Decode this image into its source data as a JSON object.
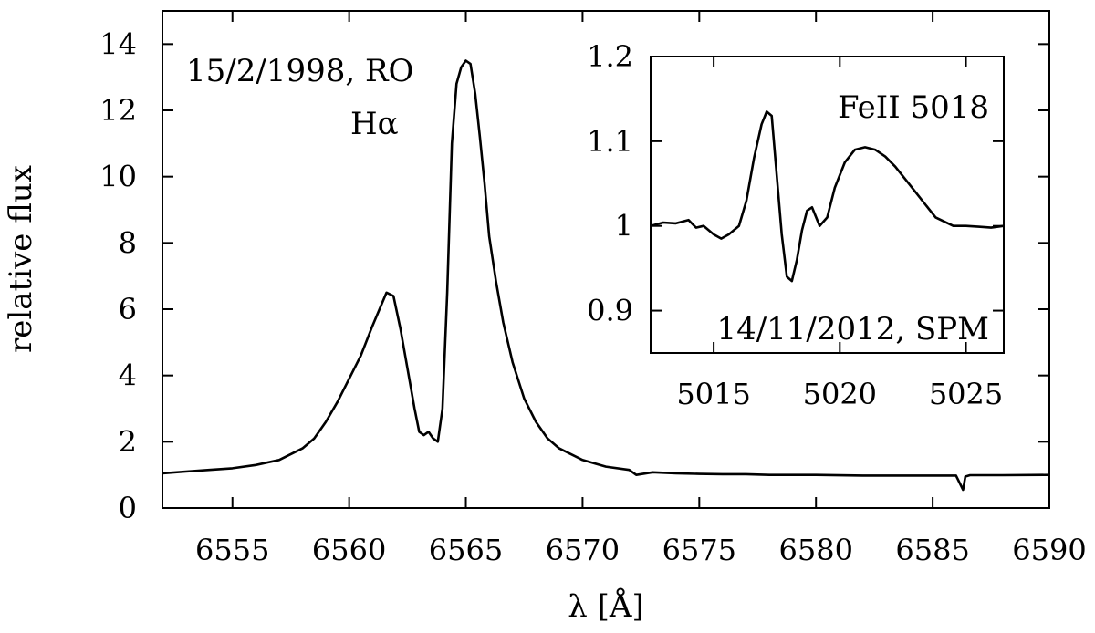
{
  "chart_data": [
    {
      "id": "main",
      "type": "line",
      "ylabel": "relative flux",
      "xlabel": "λ [Å]",
      "xlim": [
        6552,
        6590
      ],
      "ylim": [
        0,
        15
      ],
      "xticks": [
        6555,
        6560,
        6565,
        6570,
        6575,
        6580,
        6585,
        6590
      ],
      "yticks": [
        0,
        2,
        4,
        6,
        8,
        10,
        12,
        14
      ],
      "annotations": [
        "15/2/1998, RO",
        "Hα"
      ],
      "grid": false,
      "series": [
        {
          "x": [
            6552,
            6553,
            6554,
            6555,
            6556,
            6557,
            6558,
            6558.5,
            6559,
            6559.5,
            6560,
            6560.5,
            6561,
            6561.3,
            6561.6,
            6561.9,
            6562.2,
            6562.5,
            6562.8,
            6563.0,
            6563.2,
            6563.4,
            6563.6,
            6563.8,
            6564.0,
            6564.2,
            6564.4,
            6564.6,
            6564.8,
            6565.0,
            6565.2,
            6565.4,
            6565.6,
            6565.8,
            6566.0,
            6566.3,
            6566.6,
            6567.0,
            6567.5,
            6568,
            6568.5,
            6569,
            6570,
            6571,
            6572,
            6572.3,
            6573,
            6574,
            6575,
            6576,
            6577,
            6578,
            6580,
            6582,
            6584,
            6586,
            6586.3,
            6586.4,
            6586.6,
            6588,
            6590
          ],
          "y": [
            1.05,
            1.1,
            1.15,
            1.2,
            1.3,
            1.45,
            1.8,
            2.1,
            2.6,
            3.2,
            3.9,
            4.6,
            5.5,
            6.0,
            6.5,
            6.4,
            5.4,
            4.2,
            3.0,
            2.3,
            2.2,
            2.3,
            2.1,
            2.0,
            3.0,
            6.5,
            11.0,
            12.8,
            13.3,
            13.5,
            13.4,
            12.5,
            11.2,
            9.8,
            8.2,
            6.8,
            5.6,
            4.4,
            3.3,
            2.6,
            2.1,
            1.8,
            1.45,
            1.25,
            1.15,
            1.0,
            1.08,
            1.05,
            1.03,
            1.02,
            1.02,
            1.0,
            1.0,
            0.98,
            0.98,
            0.98,
            0.55,
            0.95,
            0.99,
            0.99,
            1.0
          ]
        }
      ]
    },
    {
      "id": "inset",
      "type": "line",
      "xlim": [
        5012.5,
        5026.5
      ],
      "ylim": [
        0.85,
        1.2
      ],
      "xticks": [
        5015,
        5020,
        5025
      ],
      "yticks": [
        0.9,
        1,
        1.1,
        1.2
      ],
      "annotations": [
        "FeII 5018",
        "14/11/2012, SPM"
      ],
      "grid": false,
      "series": [
        {
          "x": [
            5012.5,
            5013,
            5013.5,
            5014,
            5014.3,
            5014.6,
            5015,
            5015.3,
            5015.6,
            5016,
            5016.3,
            5016.6,
            5016.9,
            5017.1,
            5017.3,
            5017.5,
            5017.7,
            5017.9,
            5018.1,
            5018.3,
            5018.5,
            5018.7,
            5018.9,
            5019.2,
            5019.5,
            5019.8,
            5020.2,
            5020.6,
            5021.0,
            5021.4,
            5021.8,
            5022.2,
            5022.6,
            5023.0,
            5023.4,
            5023.8,
            5024.5,
            5025.0,
            5025.5,
            5026.0,
            5026.5
          ],
          "y": [
            1.0,
            1.004,
            1.003,
            1.007,
            0.998,
            1.0,
            0.99,
            0.985,
            0.99,
            1.0,
            1.03,
            1.08,
            1.12,
            1.135,
            1.13,
            1.06,
            0.99,
            0.94,
            0.935,
            0.96,
            0.995,
            1.018,
            1.022,
            1.0,
            1.01,
            1.045,
            1.075,
            1.09,
            1.093,
            1.09,
            1.082,
            1.07,
            1.055,
            1.04,
            1.025,
            1.01,
            1.0,
            1.0,
            0.999,
            0.998,
            1.0
          ]
        }
      ]
    }
  ]
}
